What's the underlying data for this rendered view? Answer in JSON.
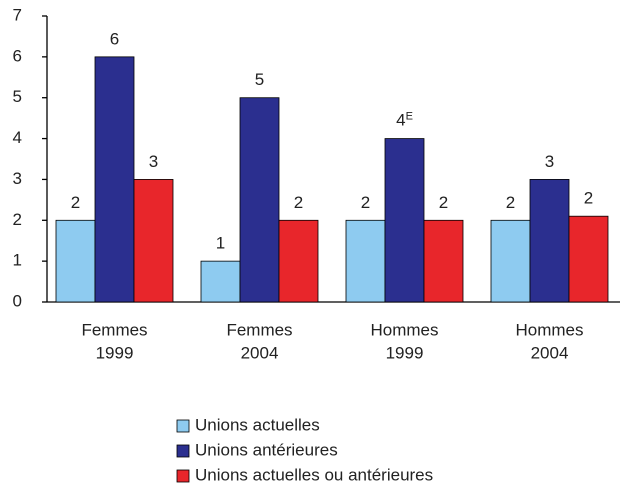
{
  "chart_data": {
    "type": "bar",
    "categories": [
      [
        "Femmes",
        "1999"
      ],
      [
        "Femmes",
        "2004"
      ],
      [
        "Hommes",
        "1999"
      ],
      [
        "Hommes",
        "2004"
      ]
    ],
    "series": [
      {
        "name": "Unions actuelles",
        "color": "#8ecbf0",
        "values": [
          2,
          1,
          2,
          2
        ]
      },
      {
        "name": "Unions antérieures",
        "color": "#2b2f8f",
        "values": [
          6,
          5,
          4,
          3
        ],
        "value_labels": [
          "6",
          "5",
          "4E",
          "3"
        ]
      },
      {
        "name": "Unions actuelles ou antérieures",
        "color": "#e8262b",
        "values": [
          3,
          2,
          2,
          2.1
        ],
        "value_labels": [
          "3",
          "2",
          "2",
          "2"
        ]
      }
    ],
    "ylim": [
      0,
      7
    ],
    "yticks": [
      0,
      1,
      2,
      3,
      4,
      5,
      6,
      7
    ],
    "legend": "bottom"
  }
}
